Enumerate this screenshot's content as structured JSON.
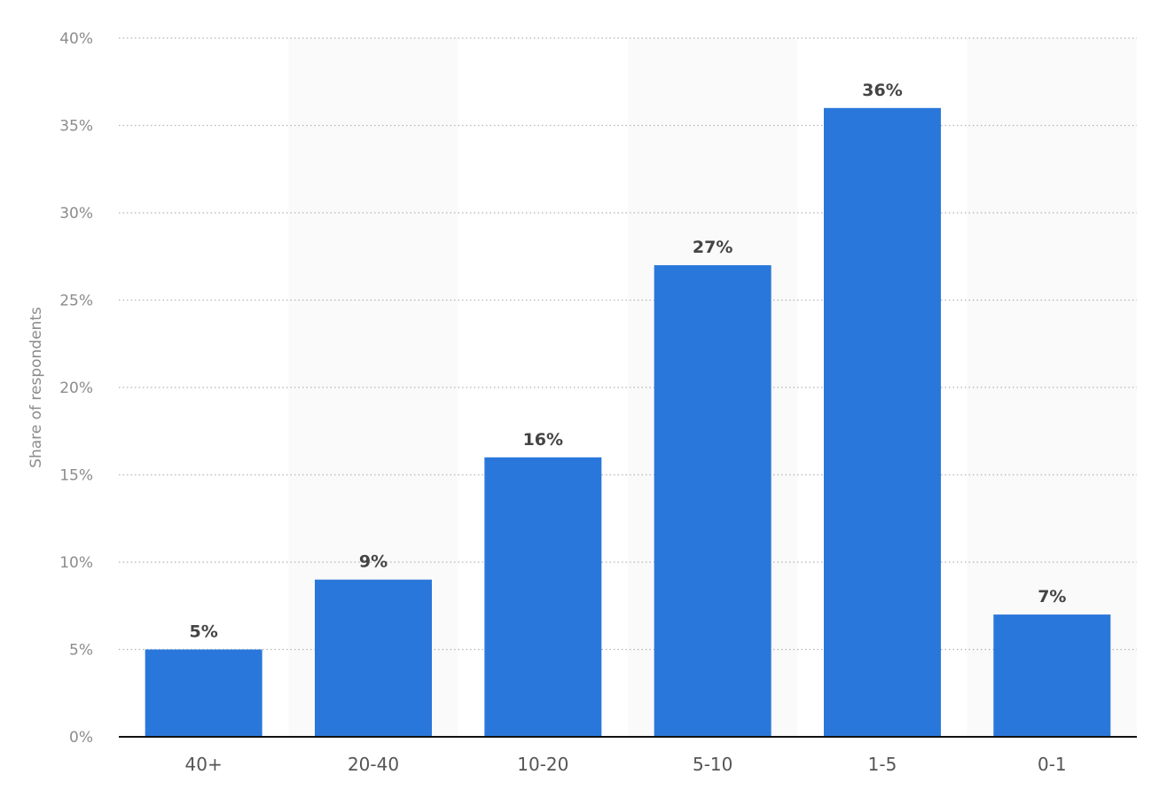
{
  "chart_data": {
    "type": "bar",
    "title": "",
    "xlabel": "",
    "ylabel": "Share of respondents",
    "categories": [
      "40+",
      "20-40",
      "10-20",
      "5-10",
      "1-5",
      "0-1"
    ],
    "values": [
      5,
      9,
      16,
      27,
      36,
      7
    ],
    "value_labels": [
      "5%",
      "9%",
      "16%",
      "27%",
      "36%",
      "7%"
    ],
    "ylim": [
      0,
      40
    ],
    "y_ticks": [
      0,
      5,
      10,
      15,
      20,
      25,
      30,
      35,
      40
    ],
    "y_tick_labels": [
      "0%",
      "5%",
      "10%",
      "15%",
      "20%",
      "25%",
      "30%",
      "35%",
      "40%"
    ],
    "grid": true,
    "legend": "none",
    "colors": {
      "bar": "#2a77db",
      "alternate_column_band": "#fafafa"
    }
  }
}
